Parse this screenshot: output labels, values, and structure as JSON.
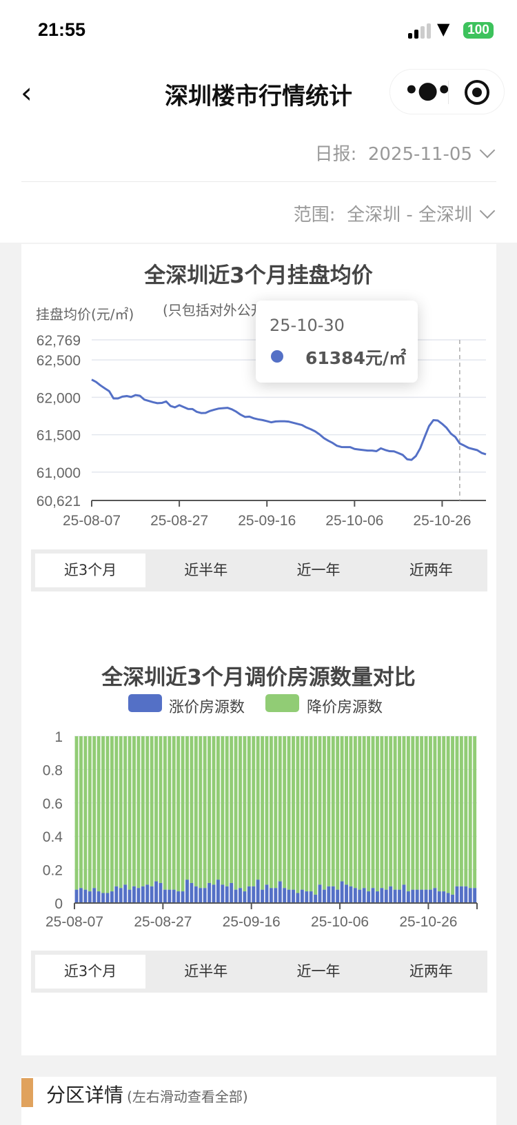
{
  "status_bar": {
    "time": "21:55",
    "battery": "100"
  },
  "nav": {
    "title": "深圳楼市行情统计",
    "back_icon": "chevron-left-icon",
    "more_icon": "more-dots-icon",
    "close_icon": "record-circle-icon"
  },
  "filters": {
    "daily_label": "日报:",
    "daily_value": "2025-11-05",
    "scope_label": "范围:",
    "scope_value": "全深圳 - 全深圳"
  },
  "colors": {
    "line": "#5470c6",
    "up": "#5470c6",
    "down": "#91cc75",
    "accent": "#e0a25d"
  },
  "chart_data": [
    {
      "type": "line",
      "title": "全深圳近3个月挂盘均价",
      "ylabel": "挂盘均价(元/㎡)",
      "subtitle": "(只包括对外公开挂盘房源)",
      "ylim": [
        60621,
        62769
      ],
      "yticks": [
        "62,769",
        "62,500",
        "62,000",
        "61,500",
        "61,000",
        "60,621"
      ],
      "ytick_values": [
        62769,
        62500,
        62000,
        61500,
        61000,
        60621
      ],
      "x_start": "25-08-07",
      "x_end": "25-11-05",
      "xticks": [
        "25-08-07",
        "25-08-27",
        "25-09-16",
        "25-10-06",
        "25-10-26"
      ],
      "grid": true,
      "values": [
        62237,
        62206,
        62160,
        62120,
        62082,
        61985,
        61985,
        62010,
        62018,
        62005,
        62030,
        62021,
        61970,
        61953,
        61935,
        61922,
        61925,
        61945,
        61885,
        61866,
        61895,
        61870,
        61845,
        61844,
        61806,
        61790,
        61792,
        61818,
        61835,
        61850,
        61855,
        61860,
        61840,
        61808,
        61768,
        61738,
        61742,
        61720,
        61706,
        61696,
        61682,
        61666,
        61678,
        61680,
        61680,
        61675,
        61660,
        61645,
        61630,
        61598,
        61574,
        61545,
        61505,
        61455,
        61420,
        61390,
        61352,
        61336,
        61334,
        61334,
        61310,
        61302,
        61295,
        61288,
        61288,
        61280,
        61318,
        61296,
        61280,
        61278,
        61255,
        61230,
        61172,
        61164,
        61215,
        61320,
        61470,
        61615,
        61695,
        61690,
        61645,
        61592,
        61515,
        61470,
        61384,
        61356,
        61325,
        61309,
        61294,
        61257,
        61238
      ],
      "tooltip": {
        "date": "25-10-30",
        "value": "61384元/㎡"
      },
      "tabs": [
        "近3个月",
        "近半年",
        "近一年",
        "近两年"
      ],
      "selected_tab": 0
    },
    {
      "type": "bar",
      "stacked": true,
      "title": "全深圳近3个月调价房源数量对比",
      "series": [
        {
          "name": "涨价房源数"
        },
        {
          "name": "降价房源数"
        }
      ],
      "ylim": [
        0,
        1
      ],
      "yticks": [
        "1",
        "0.8",
        "0.6",
        "0.4",
        "0.2",
        "0"
      ],
      "ytick_values": [
        1,
        0.8,
        0.6,
        0.4,
        0.2,
        0
      ],
      "xticks": [
        "25-08-07",
        "25-08-27",
        "25-09-16",
        "25-10-06",
        "25-10-26"
      ],
      "up_share": [
        0.08,
        0.09,
        0.08,
        0.07,
        0.09,
        0.07,
        0.06,
        0.06,
        0.07,
        0.1,
        0.09,
        0.11,
        0.08,
        0.1,
        0.09,
        0.1,
        0.11,
        0.1,
        0.13,
        0.12,
        0.08,
        0.08,
        0.08,
        0.07,
        0.07,
        0.14,
        0.12,
        0.1,
        0.09,
        0.09,
        0.12,
        0.11,
        0.14,
        0.11,
        0.1,
        0.12,
        0.08,
        0.09,
        0.07,
        0.1,
        0.1,
        0.14,
        0.08,
        0.11,
        0.09,
        0.09,
        0.13,
        0.09,
        0.08,
        0.08,
        0.06,
        0.08,
        0.07,
        0.07,
        0.05,
        0.11,
        0.08,
        0.1,
        0.1,
        0.08,
        0.13,
        0.11,
        0.1,
        0.09,
        0.08,
        0.09,
        0.07,
        0.09,
        0.07,
        0.09,
        0.08,
        0.1,
        0.08,
        0.08,
        0.11,
        0.07,
        0.08,
        0.08,
        0.08,
        0.08,
        0.08,
        0.09,
        0.07,
        0.07,
        0.06,
        0.05,
        0.1,
        0.1,
        0.1,
        0.09,
        0.09
      ],
      "tabs": [
        "近3个月",
        "近半年",
        "近一年",
        "近两年"
      ],
      "selected_tab": 0
    }
  ],
  "district": {
    "title": "分区详情",
    "hint": "(左右滑动查看全部)"
  }
}
